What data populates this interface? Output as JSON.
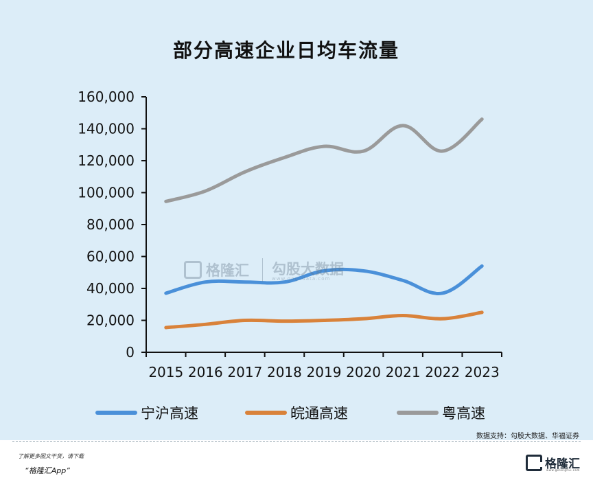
{
  "chart_data": {
    "type": "line",
    "title": "部分高速企业日均车流量",
    "categories": [
      "2015",
      "2016",
      "2017",
      "2018",
      "2019",
      "2020",
      "2021",
      "2022",
      "2023"
    ],
    "y_ticks": [
      "0",
      "20,000",
      "40,000",
      "60,000",
      "80,000",
      "100,000",
      "120,000",
      "140,000",
      "160,000"
    ],
    "ylim": [
      0,
      160000
    ],
    "grid": false,
    "legend_position": "bottom",
    "series": [
      {
        "name": "宁沪高速",
        "color": "#4a90d9",
        "values": [
          37000,
          44000,
          44000,
          44000,
          51000,
          51000,
          45000,
          37000,
          54000
        ]
      },
      {
        "name": "皖通高速",
        "color": "#d9823a",
        "values": [
          15500,
          17500,
          20000,
          19500,
          20000,
          21000,
          23000,
          21000,
          25000
        ]
      },
      {
        "name": "粤高速",
        "color": "#9a9a9a",
        "values": [
          94500,
          101000,
          113000,
          122000,
          129000,
          126000,
          142000,
          126000,
          146000
        ]
      }
    ]
  },
  "footer": {
    "source": "数据支持：勾股大数据、华福证券",
    "promo_line1": "了解更多图文干货，请下载",
    "promo_line2": "“格隆汇App”",
    "brand_name": "格隆汇",
    "brand_sub": "www.gelonghui.com"
  },
  "watermark": {
    "name": "格隆汇",
    "name2": "勾股大数据",
    "url": "www.gogudata.com"
  }
}
